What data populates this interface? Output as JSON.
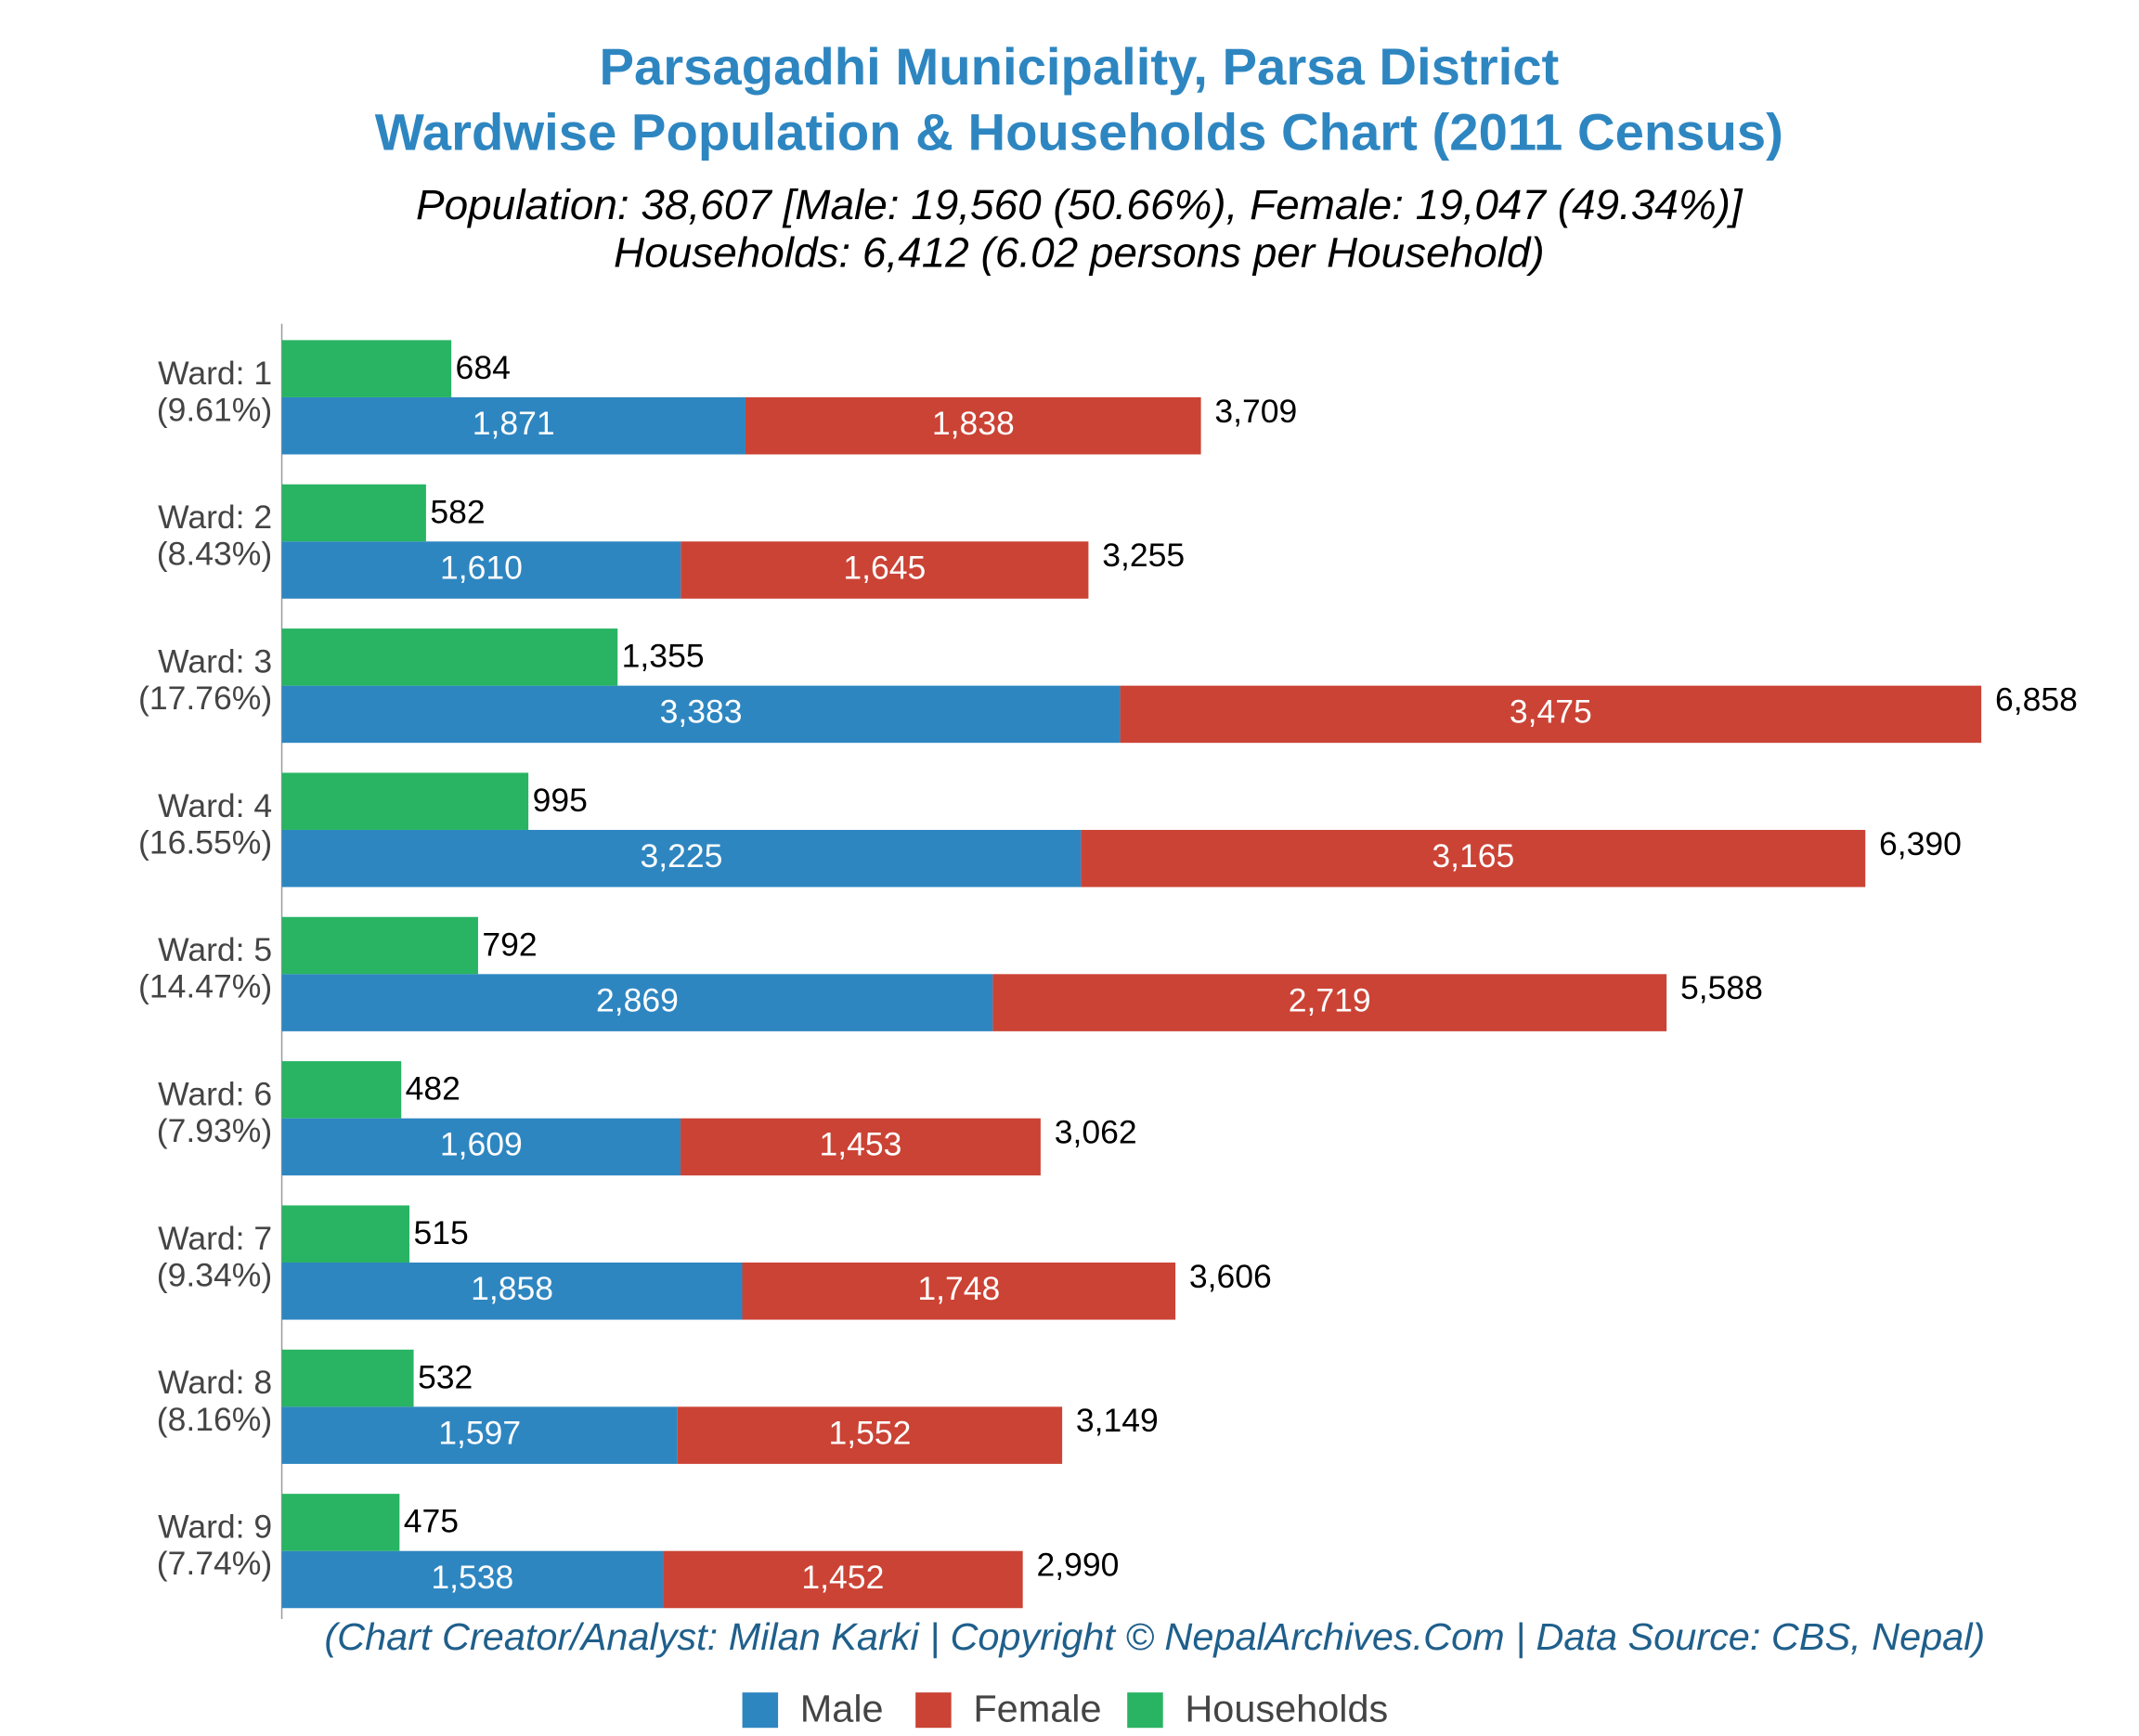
{
  "chart_data": {
    "type": "bar",
    "orientation": "horizontal",
    "title": [
      "Parsagadhi Municipality, Parsa District",
      "Wardwise Population & Households Chart (2011 Census)"
    ],
    "subtitle": [
      "Population: 38,607 [Male: 19,560 (50.66%), Female: 19,047 (49.34%)]",
      "Households: 6,412 (6.02 persons per Household)"
    ],
    "credit": "(Chart Creator/Analyst: Milan Karki | Copyright © NepalArchives.Com | Data Source: CBS, Nepal)",
    "categories": [
      "Ward: 1",
      "Ward: 2",
      "Ward: 3",
      "Ward: 4",
      "Ward: 5",
      "Ward: 6",
      "Ward: 7",
      "Ward: 8",
      "Ward: 9"
    ],
    "category_shares": [
      "(9.61%)",
      "(8.43%)",
      "(17.76%)",
      "(16.55%)",
      "(14.47%)",
      "(7.93%)",
      "(9.34%)",
      "(8.16%)",
      "(7.74%)"
    ],
    "series": [
      {
        "name": "Male",
        "color": "#2e86c1",
        "stack": "population",
        "values": [
          1871,
          1610,
          3383,
          3225,
          2869,
          1609,
          1858,
          1597,
          1538
        ],
        "value_labels": [
          "1,871",
          "1,610",
          "3,383",
          "3,225",
          "2,869",
          "1,609",
          "1,858",
          "1,597",
          "1,538"
        ]
      },
      {
        "name": "Female",
        "color": "#cb4335",
        "stack": "population",
        "values": [
          1838,
          1645,
          3475,
          3165,
          2719,
          1453,
          1748,
          1552,
          1452
        ],
        "value_labels": [
          "1,838",
          "1,645",
          "3,475",
          "3,165",
          "2,719",
          "1,453",
          "1,748",
          "1,552",
          "1,452"
        ]
      },
      {
        "name": "Households",
        "color": "#28b463",
        "stack": "households",
        "values": [
          684,
          582,
          1355,
          995,
          792,
          482,
          515,
          532,
          475
        ],
        "value_labels": [
          "684",
          "582",
          "1,355",
          "995",
          "792",
          "482",
          "515",
          "532",
          "475"
        ]
      }
    ],
    "totals": {
      "values": [
        3709,
        3255,
        6858,
        6390,
        5588,
        3062,
        3606,
        3149,
        2990
      ],
      "value_labels": [
        "3,709",
        "3,255",
        "6,858",
        "6,390",
        "5,588",
        "3,062",
        "3,606",
        "3,149",
        "2,990"
      ]
    },
    "xlim": [
      0,
      7400
    ],
    "legend": "bottom"
  }
}
